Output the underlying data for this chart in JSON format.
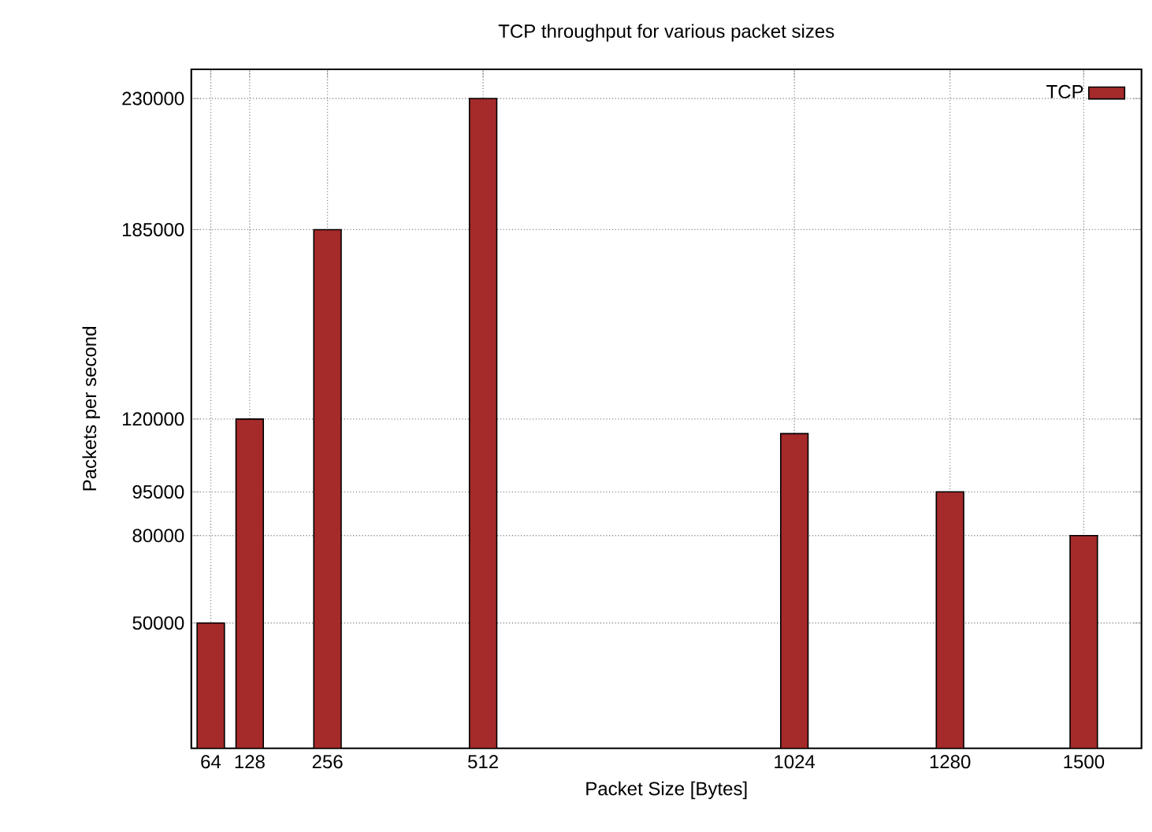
{
  "chart_data": {
    "type": "bar",
    "title": "TCP throughput for various packet sizes",
    "xlabel": "Packet Size [Bytes]",
    "ylabel": "Packets per second",
    "x": [
      64,
      128,
      256,
      512,
      1024,
      1280,
      1500
    ],
    "series": [
      {
        "name": "TCP",
        "color": "#a52a2a",
        "values": [
          50000,
          120000,
          185000,
          230000,
          115000,
          95000,
          80000
        ]
      }
    ],
    "xlim": [
      32,
      1595
    ],
    "xticks": [
      64,
      128,
      256,
      512,
      1024,
      1280,
      1500
    ],
    "ylim": [
      7000,
      240000
    ],
    "yticks": [
      50000,
      80000,
      95000,
      120000,
      185000,
      230000
    ],
    "grid": true,
    "legend": "top right"
  }
}
